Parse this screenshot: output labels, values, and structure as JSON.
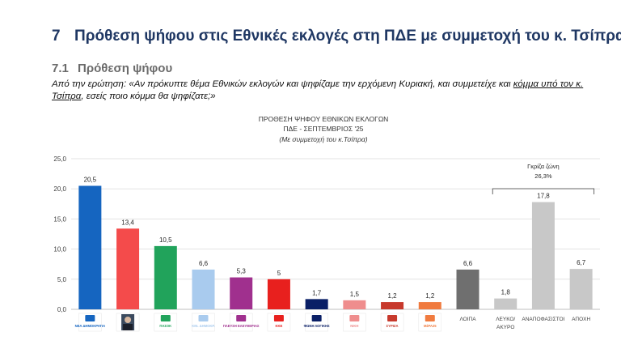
{
  "heading": {
    "number": "7",
    "text": "Πρόθεση ψήφου στις Εθνικές εκλογές στη ΠΔΕ με συμμετοχή του κ. Τσίπρα"
  },
  "subheading": {
    "number": "7.1",
    "text": "Πρόθεση ψήφου"
  },
  "question": {
    "prefix": "Από την ερώτηση: «Αν πρόκυπτε θέμα Εθνικών εκλογών και ψηφίζαμε την ερχόμενη Κυριακή, και συμμετείχε και ",
    "underlined": "κόμμα υπό τον κ. Τσίπρα",
    "suffix": ", εσείς ποιο κόμμα θα ψηφίζατε;»"
  },
  "chart_data": {
    "type": "bar",
    "title": "ΠΡΟΘΕΣΗ ΨΗΦΟΥ  ΕΘΝΙΚΩΝ ΕΚΛΟΓΩΝ",
    "subtitle": "ΠΔΕ - ΣΕΠΤΕΜΒΡΙΟΣ '25",
    "note": "(Με συμμετοχή του κ.Τσίπρα)",
    "categories": [
      "ΝΔ",
      "Τσίπρας",
      "ΠΑΣΟΚ",
      "ΚΕ",
      "ΠΛΕΥΣΗ ΕΛΕΥΘΕΡΙΑΣ",
      "ΚΚΕ",
      "ΦΩΝΗ ΛΟΓΙΚΗΣ",
      "ΝΙΚΗ",
      "ΣΥΡΙΖΑ",
      "ΜέΡΑ25",
      "ΛΟΙΠΑ",
      "ΛΕΥΚΟ/ ΑΚΥΡΟ",
      "ΑΝΑΠΟΦΑΣΙΣΤΟΙ",
      "ΑΠΟΧΗ"
    ],
    "values": [
      20.5,
      13.4,
      10.5,
      6.6,
      5.3,
      5,
      1.7,
      1.5,
      1.2,
      1.2,
      6.6,
      1.8,
      17.8,
      6.7
    ],
    "value_labels": [
      "20,5",
      "13,4",
      "10,5",
      "6,6",
      "5,3",
      "5",
      "1,7",
      "1,5",
      "1,2",
      "1,2",
      "6,6",
      "1,8",
      "17,8",
      "6,7"
    ],
    "colors": [
      "#1565c0",
      "#f44b4b",
      "#21a35b",
      "#a9cbee",
      "#a0308e",
      "#e8201e",
      "#0a1f66",
      "#ef8d8d",
      "#c7392c",
      "#f07b3f",
      "#6f6f6f",
      "#c8c8c8",
      "#c8c8c8",
      "#c8c8c8"
    ],
    "x_tick_labels": [
      "",
      "",
      "",
      "",
      "",
      "",
      "",
      "",
      "",
      "",
      "ΛΟΙΠΑ",
      "ΛΕΥΚΟ/ ΑΚΥΡΟ",
      "ΑΝΑΠΟΦΑΣΙΣΤΟΙ",
      "ΑΠΟΧΗ"
    ],
    "y_ticks": [
      "0,0",
      "5,0",
      "10,0",
      "15,0",
      "20,0",
      "25,0"
    ],
    "ylim": [
      0,
      25
    ],
    "grid": true,
    "logo_text": [
      "ΝΕΑ ΔΗΜΟΚΡΑΤΙΑ",
      "",
      "ΠΑΣΟΚ",
      "ΚΙΝ. ΔΗΜΟΚΡ.",
      "ΠΛΕΥΣΗ ΕΛΕΥΘΕΡΙΑΣ",
      "ΚΚΕ",
      "ΦΩΝΗ ΛΟΓΙΚΗΣ",
      "ΝΙΚΗ",
      "ΣΥΡΙΖΑ",
      "ΜέΡΑ25"
    ],
    "annotation": {
      "label": "Γκρίζα ζώνη",
      "value": "26,3%"
    }
  }
}
